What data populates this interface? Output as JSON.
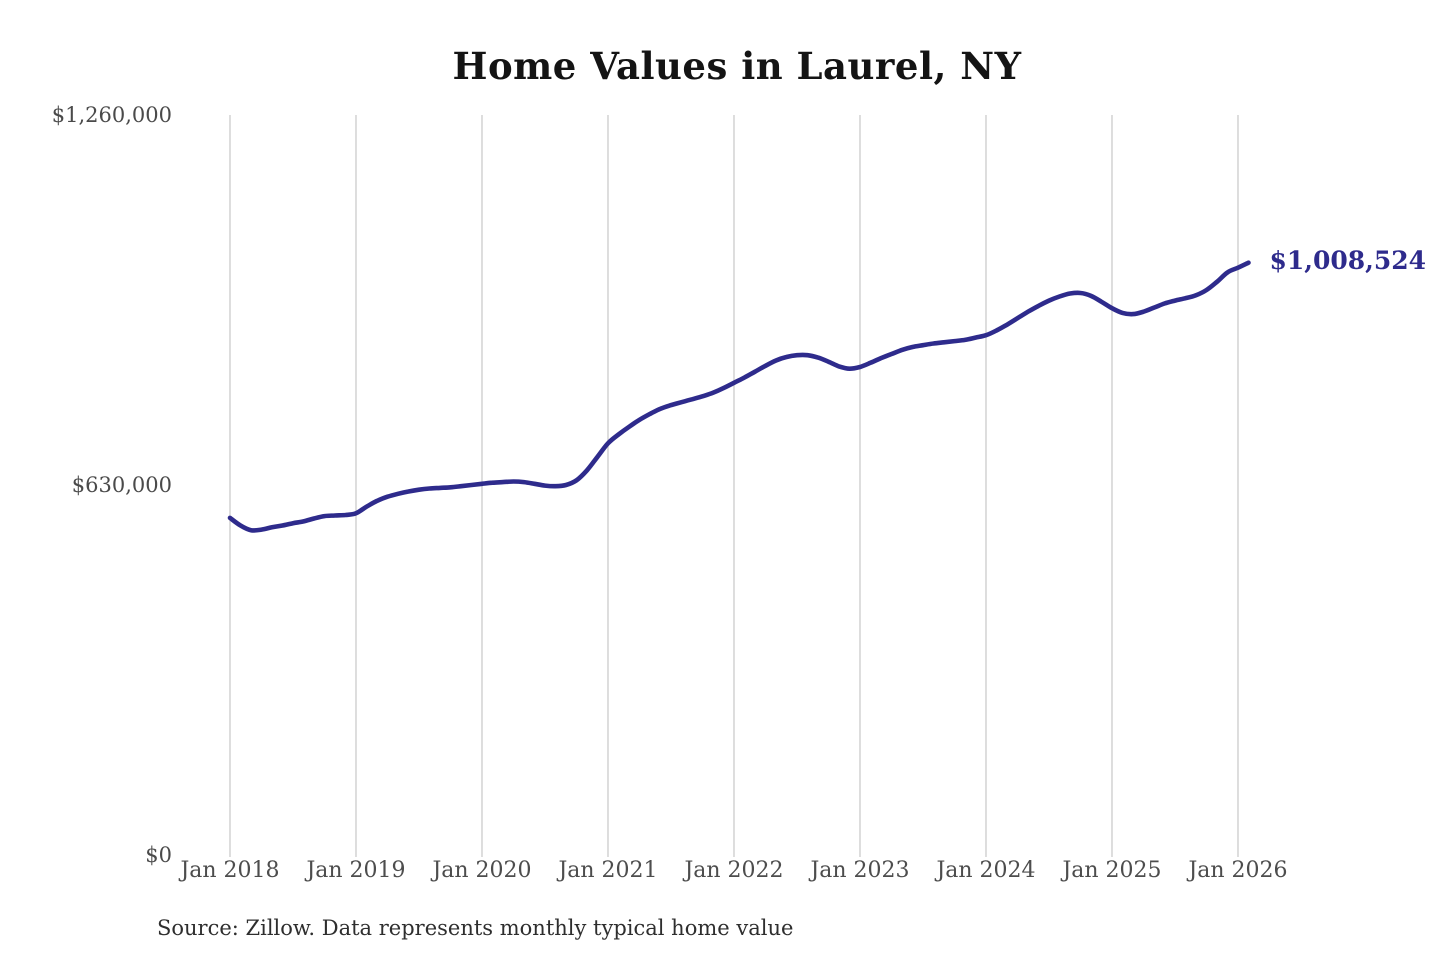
{
  "title": "Home Values in Laurel, NY",
  "source_note": "Source: Zillow. Data represents monthly typical home value",
  "latest_value_label": "$1,008,524",
  "colors": {
    "line": "#2e2b8c",
    "annotation": "#2e2b8c",
    "grid": "#cbcbcb",
    "title_text": "#141414",
    "axis_text": "#4d4d4d",
    "source_text": "#2e2e2e",
    "background": "#ffffff"
  },
  "chart_data": {
    "type": "line",
    "title": "Home Values in Laurel, NY",
    "xlabel": "",
    "ylabel": "",
    "ylim": [
      0,
      1260000
    ],
    "grid": "vertical-only",
    "legend_position": "none",
    "y_ticks": [
      {
        "value": 1260000,
        "label": "$1,260,000"
      },
      {
        "value": 630000,
        "label": "$630,000"
      },
      {
        "value": 0,
        "label": "$0"
      }
    ],
    "x_ticks": [
      {
        "month_index": 0,
        "label": "Jan 2018"
      },
      {
        "month_index": 12,
        "label": "Jan 2019"
      },
      {
        "month_index": 24,
        "label": "Jan 2020"
      },
      {
        "month_index": 36,
        "label": "Jan 2021"
      },
      {
        "month_index": 48,
        "label": "Jan 2022"
      },
      {
        "month_index": 60,
        "label": "Jan 2023"
      },
      {
        "month_index": 72,
        "label": "Jan 2024"
      },
      {
        "month_index": 84,
        "label": "Jan 2025"
      },
      {
        "month_index": 96,
        "label": "Jan 2026"
      }
    ],
    "x": [
      "Jan 2018",
      "Feb 2018",
      "Mar 2018",
      "Apr 2018",
      "May 2018",
      "Jun 2018",
      "Jul 2018",
      "Aug 2018",
      "Sep 2018",
      "Oct 2018",
      "Nov 2018",
      "Dec 2018",
      "Jan 2019",
      "Feb 2019",
      "Mar 2019",
      "Apr 2019",
      "May 2019",
      "Jun 2019",
      "Jul 2019",
      "Aug 2019",
      "Sep 2019",
      "Oct 2019",
      "Nov 2019",
      "Dec 2019",
      "Jan 2020",
      "Feb 2020",
      "Mar 2020",
      "Apr 2020",
      "May 2020",
      "Jun 2020",
      "Jul 2020",
      "Aug 2020",
      "Sep 2020",
      "Oct 2020",
      "Nov 2020",
      "Dec 2020",
      "Jan 2021",
      "Feb 2021",
      "Mar 2021",
      "Apr 2021",
      "May 2021",
      "Jun 2021",
      "Jul 2021",
      "Aug 2021",
      "Sep 2021",
      "Oct 2021",
      "Nov 2021",
      "Dec 2021",
      "Jan 2022",
      "Feb 2022",
      "Mar 2022",
      "Apr 2022",
      "May 2022",
      "Jun 2022",
      "Jul 2022",
      "Aug 2022",
      "Sep 2022",
      "Oct 2022",
      "Nov 2022",
      "Dec 2022",
      "Jan 2023",
      "Feb 2023",
      "Mar 2023",
      "Apr 2023",
      "May 2023",
      "Jun 2023",
      "Jul 2023",
      "Aug 2023",
      "Sep 2023",
      "Oct 2023",
      "Nov 2023",
      "Dec 2023",
      "Jan 2024",
      "Feb 2024",
      "Mar 2024",
      "Apr 2024",
      "May 2024",
      "Jun 2024",
      "Jul 2024",
      "Aug 2024",
      "Sep 2024",
      "Oct 2024",
      "Nov 2024",
      "Dec 2024",
      "Jan 2025",
      "Feb 2025",
      "Mar 2025",
      "Apr 2025",
      "May 2025",
      "Jun 2025",
      "Jul 2025",
      "Aug 2025",
      "Sep 2025",
      "Oct 2025",
      "Nov 2025",
      "Dec 2025",
      "Jan 2026",
      "Feb 2026"
    ],
    "series": [
      {
        "name": "Typical home value",
        "values": [
          574000,
          561000,
          553000,
          554000,
          558000,
          561000,
          565000,
          568000,
          573000,
          577000,
          578000,
          579000,
          582000,
          593000,
          603000,
          610000,
          615000,
          619000,
          622000,
          624000,
          625000,
          626000,
          628000,
          630000,
          632000,
          634000,
          635000,
          636000,
          635000,
          632000,
          629000,
          628000,
          630000,
          638000,
          655000,
          678000,
          701000,
          716000,
          729000,
          741000,
          751000,
          760000,
          766000,
          771000,
          776000,
          781000,
          787000,
          795000,
          804000,
          813000,
          823000,
          833000,
          842000,
          848000,
          851000,
          851000,
          847000,
          840000,
          832000,
          828000,
          831000,
          838000,
          846000,
          853000,
          860000,
          865000,
          868000,
          871000,
          873000,
          875000,
          877000,
          881000,
          885000,
          893000,
          903000,
          914000,
          925000,
          935000,
          944000,
          951000,
          956000,
          957000,
          952000,
          942000,
          931000,
          923000,
          921000,
          925000,
          932000,
          939000,
          944000,
          948000,
          953000,
          962000,
          976000,
          992000,
          1000000,
          1008524
        ]
      }
    ],
    "annotations": [
      {
        "text": "$1,008,524",
        "attached_to": "last-point"
      }
    ]
  }
}
